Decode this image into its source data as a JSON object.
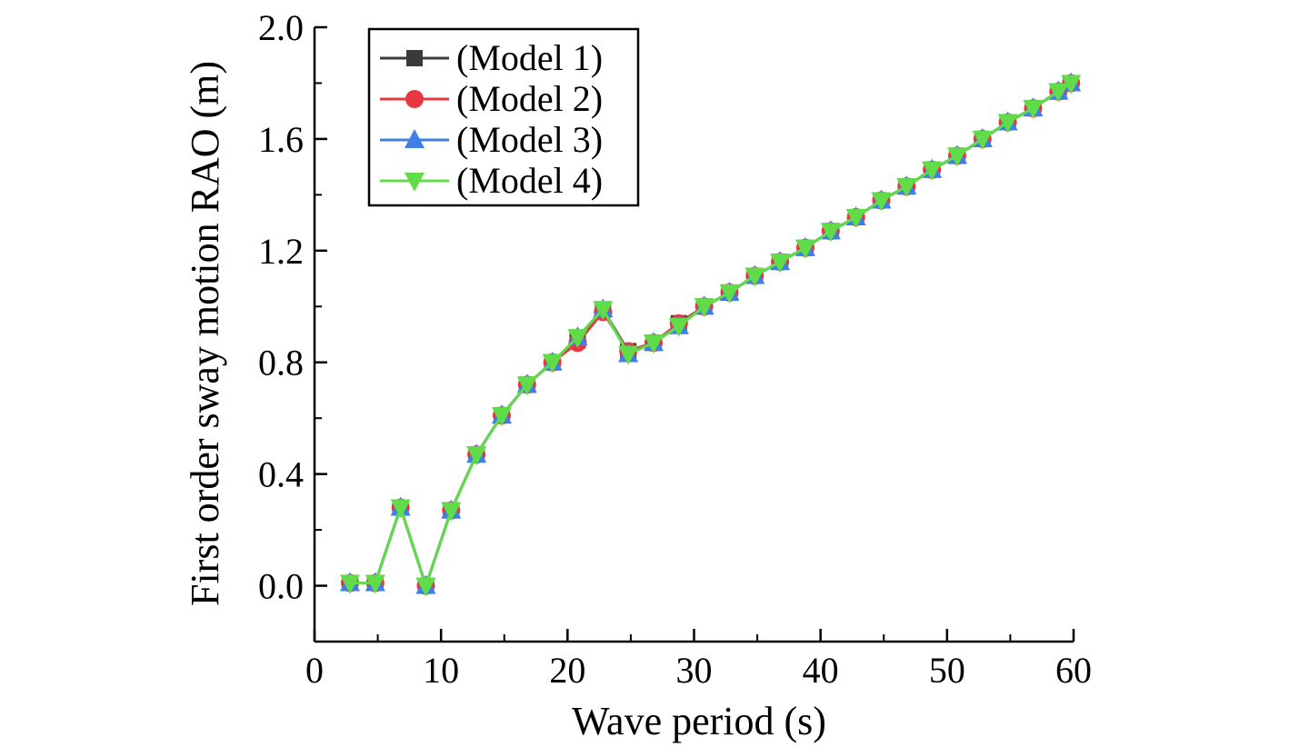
{
  "chart_data": {
    "type": "line",
    "xlabel": "Wave period (s)",
    "ylabel": "First order sway motion RAO (m)",
    "xlim": [
      0,
      60
    ],
    "ylim": [
      -0.2,
      2.0
    ],
    "x_ticks": [
      0,
      10,
      20,
      30,
      40,
      50,
      60
    ],
    "x_tick_labels": [
      "0",
      "10",
      "20",
      "30",
      "40",
      "50",
      "60"
    ],
    "y_ticks": [
      0.0,
      0.4,
      0.8,
      1.2,
      1.6,
      2.0
    ],
    "y_tick_labels": [
      "0.0",
      "0.4",
      "0.8",
      "1.2",
      "1.6",
      "2.0"
    ],
    "grid": false,
    "legend_position": "top-left",
    "x": [
      2.8,
      4.8,
      6.8,
      8.8,
      10.8,
      12.8,
      14.8,
      16.8,
      18.8,
      20.8,
      22.8,
      24.8,
      26.8,
      28.8,
      30.8,
      32.8,
      34.8,
      36.8,
      38.8,
      40.8,
      42.8,
      44.8,
      46.8,
      48.8,
      50.8,
      52.8,
      54.8,
      56.8,
      58.8,
      59.8
    ],
    "series": [
      {
        "name": "(Model 1)",
        "color": "#3a3a3a",
        "marker": "square",
        "values": [
          0.01,
          0.01,
          0.28,
          0.0,
          0.27,
          0.47,
          0.61,
          0.72,
          0.8,
          0.88,
          0.99,
          0.84,
          0.87,
          0.94,
          1.0,
          1.05,
          1.11,
          1.16,
          1.21,
          1.27,
          1.32,
          1.38,
          1.43,
          1.49,
          1.54,
          1.6,
          1.66,
          1.71,
          1.77,
          1.8
        ]
      },
      {
        "name": "(Model 2)",
        "color": "#e8373e",
        "marker": "circle",
        "values": [
          0.01,
          0.01,
          0.28,
          0.0,
          0.27,
          0.47,
          0.61,
          0.72,
          0.8,
          0.87,
          0.98,
          0.84,
          0.87,
          0.94,
          1.0,
          1.05,
          1.11,
          1.16,
          1.21,
          1.27,
          1.32,
          1.38,
          1.43,
          1.49,
          1.54,
          1.6,
          1.66,
          1.71,
          1.77,
          1.8
        ]
      },
      {
        "name": "(Model 3)",
        "color": "#3f7fe6",
        "marker": "triangle-up",
        "values": [
          0.01,
          0.01,
          0.28,
          0.0,
          0.27,
          0.47,
          0.61,
          0.72,
          0.8,
          0.89,
          0.99,
          0.83,
          0.87,
          0.93,
          1.0,
          1.05,
          1.11,
          1.16,
          1.21,
          1.27,
          1.32,
          1.38,
          1.43,
          1.49,
          1.54,
          1.6,
          1.66,
          1.71,
          1.77,
          1.8
        ]
      },
      {
        "name": "(Model 4)",
        "color": "#5fdc48",
        "marker": "triangle-down",
        "values": [
          0.01,
          0.01,
          0.28,
          0.0,
          0.27,
          0.47,
          0.61,
          0.72,
          0.8,
          0.89,
          0.99,
          0.83,
          0.87,
          0.93,
          1.0,
          1.05,
          1.11,
          1.16,
          1.21,
          1.27,
          1.32,
          1.38,
          1.43,
          1.49,
          1.54,
          1.6,
          1.66,
          1.71,
          1.77,
          1.8
        ]
      }
    ]
  }
}
